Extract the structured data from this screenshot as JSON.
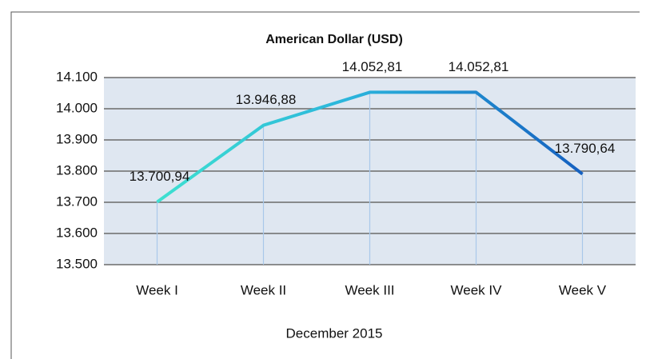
{
  "chart_data": {
    "type": "line",
    "title": "American Dollar  (USD)",
    "x_label": "December 2015",
    "categories": [
      "Week I",
      "Week II",
      "Week III",
      "Week IV",
      "Week V"
    ],
    "series": [
      {
        "name": "USD",
        "color": "#1a6fc4",
        "values": [
          13700.94,
          13946.88,
          14052.81,
          14052.81,
          13790.64
        ],
        "value_labels": [
          "13.700,94",
          "13.946,88",
          "14.052,81",
          "14.052,81",
          "13.790,64"
        ]
      }
    ],
    "ylim": [
      13500,
      14100
    ],
    "yticks": [
      {
        "value": 13500,
        "label": "13.500"
      },
      {
        "value": 13600,
        "label": "13.600"
      },
      {
        "value": 13700,
        "label": "13.700"
      },
      {
        "value": 13800,
        "label": "13.800"
      },
      {
        "value": 13900,
        "label": "13.900"
      },
      {
        "value": 14000,
        "label": "14.000"
      },
      {
        "value": 14100,
        "label": "14.100"
      }
    ],
    "grid": true
  }
}
